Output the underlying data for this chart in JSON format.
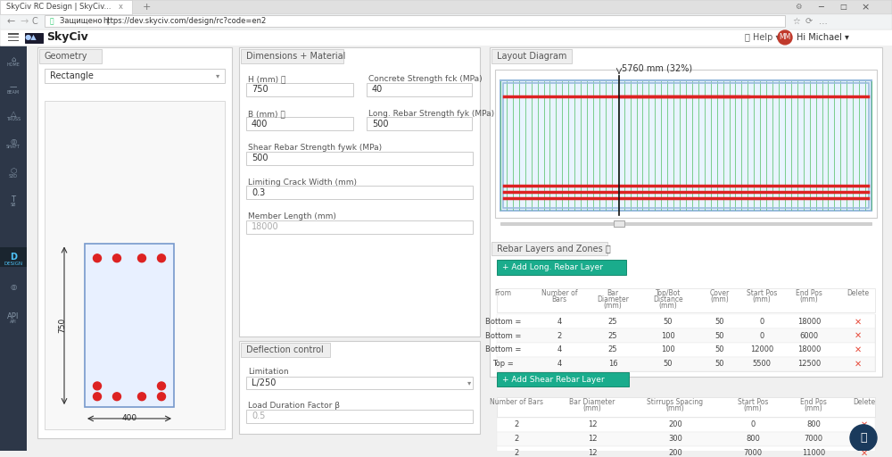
{
  "title_bar_color": "#e2e2e2",
  "tab_color": "#f5f5f5",
  "tab_active_color": "#ffffff",
  "address_bar_color": "#f1f3f4",
  "nav_bar_color": "#ffffff",
  "sidebar_color": "#2d3748",
  "content_bg": "#f0f0f0",
  "panel_bg": "#ffffff",
  "panel_border": "#d0d0d0",
  "section_tab_bg": "#e8e8e8",
  "section_tab_border": "#cccccc",
  "input_bg": "#ffffff",
  "input_bg_disabled": "#f8f8f8",
  "input_border": "#cccccc",
  "input_text": "#333333",
  "input_placeholder": "#aaaaaa",
  "label_color": "#555555",
  "button_teal_bg": "#1aac8c",
  "button_teal_text": "#ffffff",
  "table_header_color": "#777777",
  "table_border": "#e0e0e0",
  "delete_color": "#e74c3c",
  "cross_fill": "#e8f0ff",
  "cross_border": "#7799cc",
  "rebar_color": "#dd2222",
  "diagram_bg": "#e8f4ff",
  "diagram_border": "#99bbdd",
  "green_line": "#44bb55",
  "red_line": "#dd2222",
  "url": "https://dev.skyciv.com/design/rc?code=en2",
  "tab_title": "SkyCiv RC Design | SkyCiv...",
  "anno_text": "5760 mm (32%)"
}
